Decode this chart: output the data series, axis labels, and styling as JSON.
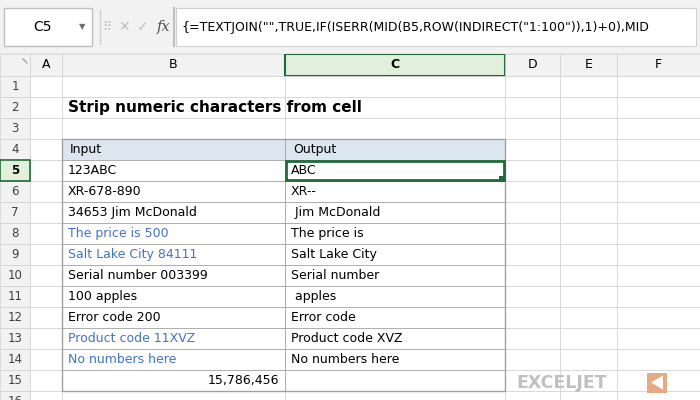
{
  "title": "Strip numeric characters from cell",
  "formula_bar_cell": "C5",
  "formula_bar_text": "{=TEXTJOIN(\"\",TRUE,IF(ISERR(MID(B5,ROW(INDIRECT(\"1:100\")),1)+0),MID",
  "col_headers": [
    "A",
    "B",
    "C",
    "D",
    "E",
    "F"
  ],
  "table_header_bg": "#dce6f1",
  "table_border_color": "#a0a0a0",
  "selected_cell_border": "#1f6b3a",
  "header_row": [
    "Input",
    "Output"
  ],
  "input_col": [
    "123ABC",
    "XR-678-890",
    "34653 Jim McDonald",
    "The price is 500",
    "Salt Lake City 84111",
    "Serial number 003399",
    "100 apples",
    "Error code 200",
    "Product code 11XVZ",
    "No numbers here",
    "            15,786,456"
  ],
  "output_col": [
    "ABC",
    "XR--",
    " Jim McDonald",
    "The price is ",
    "Salt Lake City ",
    "Serial number ",
    " apples",
    "Error code ",
    "Product code XVZ",
    "No numbers here",
    ""
  ],
  "blue_input_indices": [
    3,
    4,
    8,
    9
  ],
  "exceljet_color": "#e8a882",
  "exceljet_text_color": "#b0b0b0",
  "bg_color": "#ffffff",
  "formula_bar_bg": "#f2f2f2",
  "col_header_bg": "#f2f2f2",
  "row_header_bg": "#f2f2f2",
  "grid_color": "#d0d0d0",
  "active_col_header_bg": "#e2efda",
  "active_col_header_border": "#1f6b3a",
  "formula_text_color": "#c0392b"
}
